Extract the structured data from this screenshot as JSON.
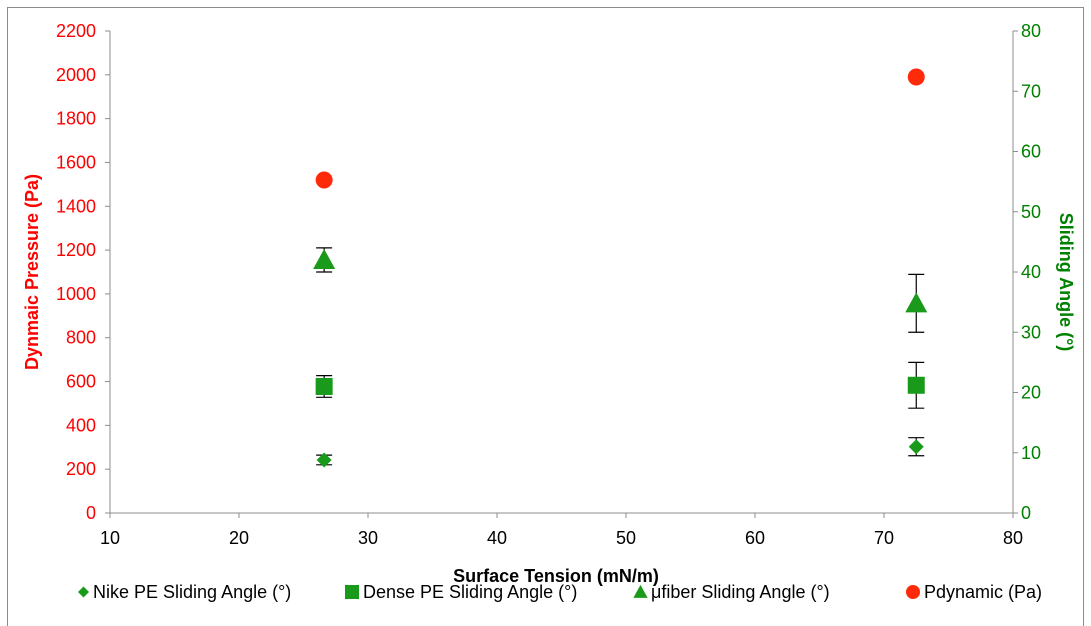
{
  "chart_data": {
    "type": "scatter",
    "xlabel": "Surface Tension (mN/m)",
    "ylabel_left": "Dynmaic Pressure (Pa)",
    "ylabel_right": "Sliding Angle (°)",
    "xlim": [
      10,
      80
    ],
    "xticks": [
      10,
      20,
      30,
      40,
      50,
      60,
      70,
      80
    ],
    "ylim_left": [
      0,
      2200
    ],
    "yticks_left": [
      0,
      200,
      400,
      600,
      800,
      1000,
      1200,
      1400,
      1600,
      1800,
      2000,
      2200
    ],
    "ylim_right": [
      0,
      80
    ],
    "yticks_right": [
      0,
      10,
      20,
      30,
      40,
      50,
      60,
      70,
      80
    ],
    "grid": false,
    "legend_position": "bottom",
    "colors": {
      "left_axis": "#ff0000",
      "right_axis": "#008000",
      "green_marker": "#1a9a1a",
      "red_marker": "#ff2a0a",
      "error_bar": "#000000"
    },
    "series": [
      {
        "name": "Nike PE Sliding Angle (°)",
        "axis": "right",
        "marker": "diamond",
        "x": [
          26.6,
          72.5
        ],
        "y": [
          8.8,
          11.0
        ],
        "err": [
          0.8,
          1.5
        ]
      },
      {
        "name": "Dense PE Sliding Angle (°)",
        "axis": "right",
        "marker": "square",
        "x": [
          26.6,
          72.5
        ],
        "y": [
          21.0,
          21.2
        ],
        "err": [
          1.8,
          3.8
        ]
      },
      {
        "name": "μfiber Sliding Angle (°)",
        "axis": "right",
        "marker": "triangle",
        "x": [
          26.6,
          72.5
        ],
        "y": [
          42.0,
          34.8
        ],
        "err": [
          2.0,
          4.8
        ]
      },
      {
        "name": "Pdynamic (Pa)",
        "axis": "left",
        "marker": "circle",
        "x": [
          26.6,
          72.5
        ],
        "y": [
          1520,
          1990
        ]
      }
    ]
  }
}
